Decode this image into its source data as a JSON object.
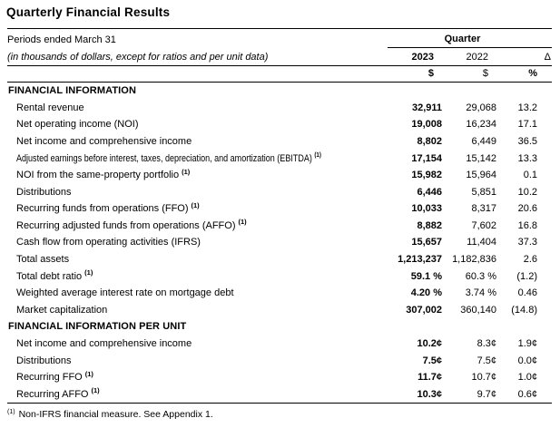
{
  "title": "Quarterly Financial Results",
  "table": {
    "period_label": "Periods ended March 31",
    "units_note": "(in thousands of dollars, except for ratios and per unit data)",
    "quarter_label": "Quarter",
    "col_2023": "2023",
    "col_2022": "2022",
    "col_delta": "Δ",
    "unit_2023": "$",
    "unit_2022": "$",
    "unit_delta": "%",
    "rows": [
      {
        "type": "section",
        "label": "FINANCIAL INFORMATION"
      },
      {
        "type": "item",
        "label": "Rental revenue",
        "v2023": "32,911",
        "v2022": "29,068",
        "delta": "13.2"
      },
      {
        "type": "item",
        "label": "Net operating income (NOI)",
        "v2023": "19,008",
        "v2022": "16,234",
        "delta": "17.1"
      },
      {
        "type": "item",
        "label": "Net income and comprehensive income",
        "v2023": "8,802",
        "v2022": "6,449",
        "delta": "36.5"
      },
      {
        "type": "item",
        "label": "Adjusted earnings before interest, taxes, depreciation, and amortization (EBITDA)",
        "sup": "(1)",
        "condensed": true,
        "v2023": "17,154",
        "v2022": "15,142",
        "delta": "13.3"
      },
      {
        "type": "item",
        "label": "NOI from the same-property portfolio",
        "sup": "(1)",
        "v2023": "15,982",
        "v2022": "15,964",
        "delta": "0.1"
      },
      {
        "type": "item",
        "label": "Distributions",
        "v2023": "6,446",
        "v2022": "5,851",
        "delta": "10.2"
      },
      {
        "type": "item",
        "label": "Recurring funds from operations (FFO)",
        "sup": "(1)",
        "v2023": "10,033",
        "v2022": "8,317",
        "delta": "20.6"
      },
      {
        "type": "item",
        "label": "Recurring adjusted funds from operations (AFFO)",
        "sup": "(1)",
        "v2023": "8,882",
        "v2022": "7,602",
        "delta": "16.8"
      },
      {
        "type": "item",
        "label": "Cash flow from operating activities (IFRS)",
        "v2023": "15,657",
        "v2022": "11,404",
        "delta": "37.3"
      },
      {
        "type": "item",
        "label": "Total assets",
        "v2023": "1,213,237",
        "v2022": "1,182,836",
        "delta": "2.6"
      },
      {
        "type": "item",
        "label": "Total debt ratio",
        "sup": "(1)",
        "v2023": "59.1 %",
        "v2022": "60.3 %",
        "delta": "(1.2)"
      },
      {
        "type": "item",
        "label": "Weighted average interest rate on mortgage debt",
        "v2023": "4.20 %",
        "v2022": "3.74 %",
        "delta": "0.46"
      },
      {
        "type": "item",
        "label": "Market capitalization",
        "v2023": "307,002",
        "v2022": "360,140",
        "delta": "(14.8)"
      },
      {
        "type": "section",
        "label": "FINANCIAL INFORMATION PER UNIT"
      },
      {
        "type": "item",
        "label": "Net income and comprehensive income",
        "v2023": "10.2¢",
        "v2022": "8.3¢",
        "delta": "1.9¢"
      },
      {
        "type": "item",
        "label": "Distributions",
        "v2023": "7.5¢",
        "v2022": "7.5¢",
        "delta": "0.0¢"
      },
      {
        "type": "item",
        "label": "Recurring FFO",
        "sup": "(1)",
        "v2023": "11.7¢",
        "v2022": "10.7¢",
        "delta": "1.0¢"
      },
      {
        "type": "item",
        "label": "Recurring AFFO",
        "sup": "(1)",
        "v2023": "10.3¢",
        "v2022": "9.7¢",
        "delta": "0.6¢"
      }
    ]
  },
  "footnote": {
    "marker": "(1)",
    "text": "Non-IFRS financial measure. See Appendix 1."
  }
}
